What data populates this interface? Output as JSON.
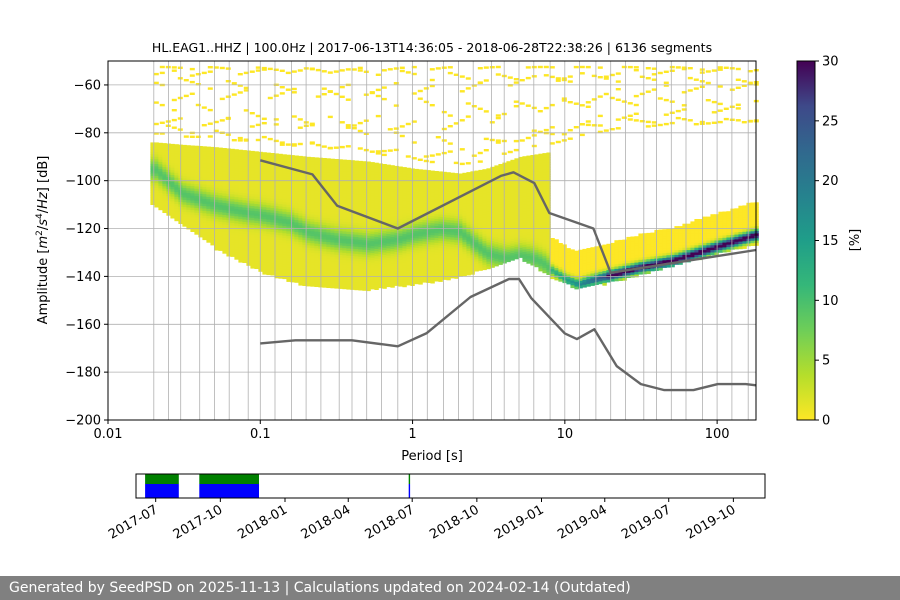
{
  "chart_data": [
    {
      "type": "heatmap",
      "title": "HL.EAG1..HHZ | 100.0Hz | 2017-06-13T14:36:05 - 2018-06-28T22:38:26 | 6136 segments",
      "xlabel": "Period [s]",
      "ylabel_parts": [
        "Amplitude [",
        "m",
        "2",
        "/",
        "s",
        "4",
        "/",
        "Hz",
        "] [dB]"
      ],
      "x_scale": "log",
      "xlim": [
        0.01,
        180
      ],
      "ylim": [
        -200,
        -50
      ],
      "x_ticks": [
        {
          "value": 0.01,
          "label": "0.01"
        },
        {
          "value": 0.1,
          "label": "0.1"
        },
        {
          "value": 1,
          "label": "1"
        },
        {
          "value": 10,
          "label": "10"
        },
        {
          "value": 100,
          "label": "100"
        }
      ],
      "y_ticks": [
        {
          "value": -60,
          "label": "−60"
        },
        {
          "value": -80,
          "label": "−80"
        },
        {
          "value": -100,
          "label": "−100"
        },
        {
          "value": -120,
          "label": "−120"
        },
        {
          "value": -140,
          "label": "−140"
        },
        {
          "value": -160,
          "label": "−160"
        },
        {
          "value": -180,
          "label": "−180"
        },
        {
          "value": -200,
          "label": "−200"
        }
      ],
      "grid_periods": [
        0.02,
        0.025,
        0.03,
        0.04,
        0.05,
        0.0625,
        0.0833,
        0.1,
        0.125,
        0.16,
        0.2,
        0.25,
        0.33,
        0.4,
        0.5,
        0.625,
        0.8,
        1,
        1.25,
        1.6,
        2,
        2.5,
        3.3,
        4,
        5,
        6.25,
        8,
        10,
        12.5,
        16,
        20,
        25,
        33,
        40,
        50,
        62.5,
        80,
        100,
        125,
        160
      ],
      "grid_amplitudes": [
        -60,
        -80,
        -100,
        -120,
        -140,
        -160,
        -180
      ],
      "colorbar": {
        "label": "[%]",
        "colormap": "viridis_r",
        "range": [
          0,
          30
        ],
        "ticks": [
          0,
          5,
          10,
          15,
          20,
          25,
          30
        ]
      },
      "density_envelope": {
        "periods": [
          0.02,
          0.03,
          0.05,
          0.1,
          0.2,
          0.5,
          1,
          2,
          3,
          5,
          8,
          12,
          20,
          50,
          100,
          180
        ],
        "lower": [
          -110,
          -118,
          -128,
          -138,
          -144,
          -145,
          -143,
          -140,
          -136,
          -132,
          -140,
          -145,
          -142,
          -135,
          -130,
          -126
        ],
        "upper": [
          -84,
          -85,
          -86,
          -88,
          -90,
          -92,
          -95,
          -97,
          -95,
          -90,
          -88,
          -85,
          -82,
          -80,
          -80,
          -79
        ]
      },
      "mode_curve": {
        "periods": [
          0.02,
          0.03,
          0.05,
          0.08,
          0.1,
          0.15,
          0.2,
          0.3,
          0.5,
          0.8,
          1,
          1.5,
          2,
          3,
          4,
          5,
          6,
          7,
          8,
          10,
          12,
          15,
          20,
          30,
          50,
          100,
          180
        ],
        "amplitudes": [
          -95,
          -105,
          -110,
          -113,
          -114,
          -117,
          -121,
          -124,
          -126,
          -124,
          -122,
          -120,
          -121,
          -130,
          -132,
          -131,
          -132,
          -134,
          -137,
          -141,
          -143,
          -141,
          -139,
          -136,
          -133,
          -127,
          -122
        ]
      },
      "noise_models": [
        {
          "periods": [
            0.1,
            0.22,
            0.32,
            0.8,
            3.8,
            4.6,
            6.3,
            7.9,
            15.4,
            20,
            354.8
          ],
          "amplitudes": [
            -91.5,
            -97.4,
            -110.5,
            -120,
            -98,
            -96.5,
            -101,
            -113.5,
            -120,
            -138.5,
            -126
          ]
        },
        {
          "periods": [
            0.1,
            0.17,
            0.4,
            0.8,
            1.24,
            2.4,
            4.3,
            5,
            6,
            10,
            12,
            15.6,
            21.9,
            31.6,
            45,
            70,
            101,
            154,
            180
          ],
          "amplitudes": [
            -168,
            -166.7,
            -166.7,
            -169.2,
            -163.7,
            -148.6,
            -141.1,
            -141.1,
            -149,
            -163.8,
            -166.2,
            -162.1,
            -177.5,
            -185,
            -187.5,
            -187.5,
            -185,
            -185,
            -185.5
          ]
        }
      ]
    },
    {
      "type": "timeline",
      "x_ticks": [
        {
          "date": "2017-07",
          "label": "2017-07"
        },
        {
          "date": "2017-10",
          "label": "2017-10"
        },
        {
          "date": "2018-01",
          "label": "2018-01"
        },
        {
          "date": "2018-04",
          "label": "2018-04"
        },
        {
          "date": "2018-07",
          "label": "2018-07"
        },
        {
          "date": "2018-10",
          "label": "2018-10"
        },
        {
          "date": "2019-01",
          "label": "2019-01"
        },
        {
          "date": "2019-04",
          "label": "2019-04"
        },
        {
          "date": "2019-07",
          "label": "2019-07"
        },
        {
          "date": "2019-10",
          "label": "2019-10"
        }
      ],
      "xlim": [
        "2017-06-03",
        "2019-11-15"
      ],
      "coverage_periods": [
        {
          "start": "2017-06-16",
          "end": "2017-08-03"
        },
        {
          "start": "2017-09-01",
          "end": "2017-11-25"
        },
        {
          "start": "2018-06-26",
          "end": "2018-06-28"
        }
      ],
      "colors": {
        "top": "#008000",
        "bottom": "#0000ff"
      }
    }
  ],
  "footer": {
    "text": "Generated by SeedPSD on 2025-11-13 | Calculations updated on 2024-02-14 (Outdated)"
  }
}
